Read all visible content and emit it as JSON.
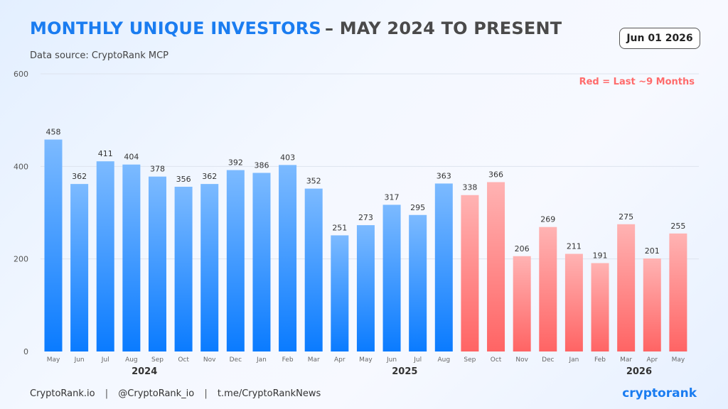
{
  "title": {
    "highlight": "MONTHLY UNIQUE INVESTORS",
    "rest": "– MAY 2024 TO PRESENT"
  },
  "subtitle": "Data source: CryptoRank MCP",
  "date_badge": "Jun 01 2026",
  "legend_note": "Red = Last ~9 Months",
  "footer": {
    "site": "CryptoRank.io",
    "separator": "|",
    "twitter": "@CryptoRank_io",
    "telegram": "t.me/CryptoRankNews",
    "brand": "cryptorank"
  },
  "colors": {
    "blue_top": "#7cbaff",
    "blue_bottom": "#0a7bff",
    "red_top": "#ffb3b3",
    "red_bottom": "#ff6464",
    "grid": "#dde3ee"
  },
  "chart_data": {
    "type": "bar",
    "categories": [
      "May",
      "Jun",
      "Jul",
      "Aug",
      "Sep",
      "Oct",
      "Nov",
      "Dec",
      "Jan",
      "Feb",
      "Mar",
      "Apr",
      "May",
      "Jun",
      "Jul",
      "Aug",
      "Sep",
      "Oct",
      "Nov",
      "Dec",
      "Jan",
      "Feb",
      "Mar",
      "Apr",
      "May"
    ],
    "values": [
      458,
      362,
      411,
      404,
      378,
      356,
      362,
      392,
      386,
      403,
      352,
      251,
      273,
      317,
      295,
      363,
      338,
      366,
      206,
      269,
      211,
      191,
      275,
      201,
      255
    ],
    "highlight_start_index": 16,
    "year_labels": [
      {
        "label": "2024",
        "center_index": 3.5
      },
      {
        "label": "2025",
        "center_index": 13.5
      },
      {
        "label": "2026",
        "center_index": 22.5
      }
    ],
    "ylim": [
      0,
      600
    ],
    "yticks": [
      0,
      200,
      400,
      600
    ],
    "grid": true,
    "legend": "none"
  }
}
